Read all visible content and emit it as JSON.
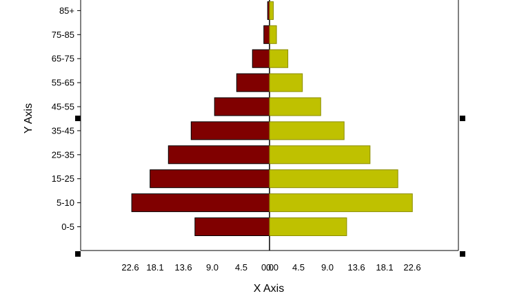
{
  "chart_data": {
    "type": "bar",
    "orientation": "horizontal",
    "layout": "population-pyramid",
    "title": "",
    "xlabel": "X Axis",
    "ylabel": "Y Axis",
    "categories": [
      "0-5",
      "5-10",
      "15-25",
      "25-35",
      "35-45",
      "45-55",
      "55-65",
      "65-75",
      "75-85",
      "85+"
    ],
    "series": [
      {
        "side": "left",
        "color": "#800000",
        "values": [
          11.8,
          21.8,
          18.9,
          16.0,
          12.4,
          8.7,
          5.2,
          2.7,
          0.9,
          0.3
        ]
      },
      {
        "side": "right",
        "color": "#bfc100",
        "values": [
          12.2,
          22.6,
          20.3,
          15.9,
          11.8,
          8.1,
          5.2,
          2.9,
          1.1,
          0.6
        ]
      }
    ],
    "xlim": [
      -30,
      30
    ],
    "x_tick_labels_left": [
      "22.6",
      "18.1",
      "13.6",
      "9.0",
      "4.5",
      "0.0"
    ],
    "x_tick_labels_right": [
      "0.0",
      "4.5",
      "9.0",
      "13.6",
      "18.1",
      "22.6"
    ],
    "grid": false,
    "legend": "none"
  }
}
